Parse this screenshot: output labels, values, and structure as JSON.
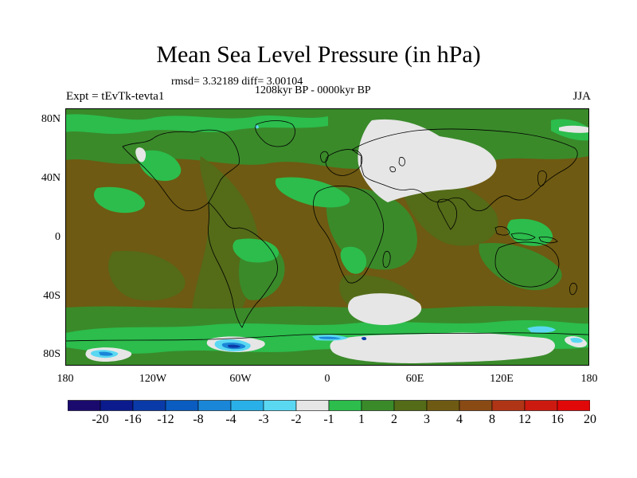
{
  "title": "Mean Sea Level Pressure (in hPa)",
  "stats": "rmsd= 3.32189 diff= 3.00104",
  "period": "1208kyr BP - 0000kyr BP",
  "experiment": "Expt = tEvTk-tevta1",
  "season": "JJA",
  "axes": {
    "y_ticks": [
      "80N",
      "40N",
      "0",
      "40S",
      "80S"
    ],
    "x_ticks": [
      "180",
      "120W",
      "60W",
      "0",
      "60E",
      "120E",
      "180"
    ]
  },
  "colorbar": {
    "colors": [
      "#1a0a6e",
      "#0b1a8c",
      "#0a3aa8",
      "#0a5cc0",
      "#1a86d8",
      "#2ab0e8",
      "#5ad8f2",
      "#e6e6e6",
      "#2cbd4c",
      "#3a8a2a",
      "#546b18",
      "#6e5a12",
      "#8a4a14",
      "#b03416",
      "#cc1a10",
      "#e00808"
    ],
    "labels": [
      "-20",
      "-16",
      "-12",
      "-8",
      "-4",
      "-3",
      "-2",
      "-1",
      "1",
      "2",
      "3",
      "4",
      "8",
      "12",
      "16",
      "20"
    ]
  },
  "fill_colors": {
    "background": "#6e5a12",
    "green_dark": "#3a8a2a",
    "green_olive": "#546b18",
    "green_bright": "#2cbd4c",
    "white": "#e6e6e6",
    "blue": "#1a86d8",
    "cyan": "#5ad8f2",
    "navy": "#0a3aa8",
    "coast": "#000000"
  }
}
